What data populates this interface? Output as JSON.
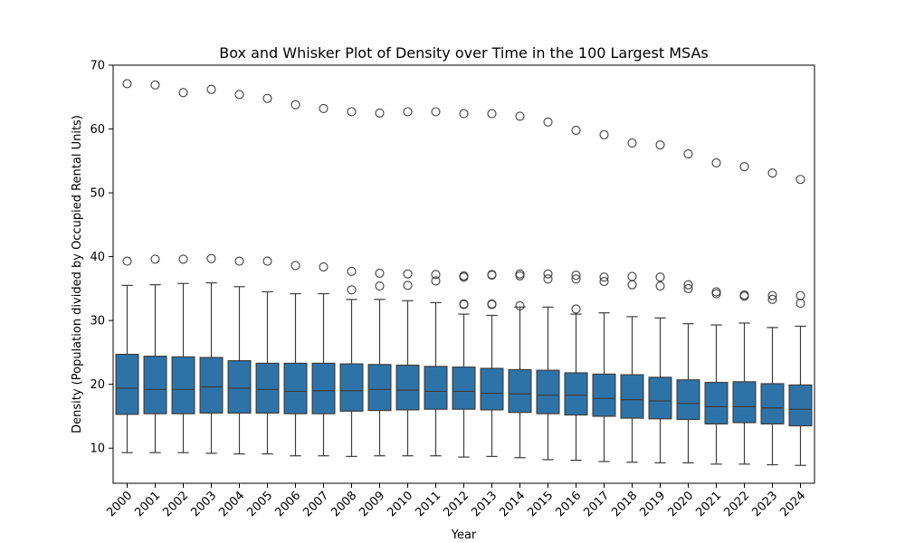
{
  "chart_data": {
    "type": "box",
    "title": "Box and Whisker Plot of Density over Time in the 100 Largest MSAs",
    "xlabel": "Year",
    "ylabel": "Density (Population divided by Occupied Rental Units)",
    "ylim": [
      4.5,
      70
    ],
    "yticks": [
      10,
      20,
      30,
      40,
      50,
      60,
      70
    ],
    "grid": false,
    "box_color": "#2e73a8",
    "line_color": "#3d3d3d",
    "categories": [
      "2000",
      "2001",
      "2002",
      "2003",
      "2004",
      "2005",
      "2006",
      "2007",
      "2008",
      "2009",
      "2010",
      "2011",
      "2012",
      "2013",
      "2014",
      "2015",
      "2016",
      "2017",
      "2018",
      "2019",
      "2020",
      "2021",
      "2022",
      "2023",
      "2024"
    ],
    "boxes": [
      {
        "whislo": 9.3,
        "q1": 15.3,
        "med": 19.4,
        "q3": 24.7,
        "whishi": 35.5,
        "fliers": [
          39.3,
          67.1
        ]
      },
      {
        "whislo": 9.3,
        "q1": 15.4,
        "med": 19.2,
        "q3": 24.4,
        "whishi": 35.6,
        "fliers": [
          39.6,
          66.9
        ]
      },
      {
        "whislo": 9.3,
        "q1": 15.4,
        "med": 19.2,
        "q3": 24.3,
        "whishi": 35.8,
        "fliers": [
          39.6,
          65.7
        ]
      },
      {
        "whislo": 9.2,
        "q1": 15.5,
        "med": 19.6,
        "q3": 24.2,
        "whishi": 35.9,
        "fliers": [
          39.7,
          66.2
        ]
      },
      {
        "whislo": 9.1,
        "q1": 15.5,
        "med": 19.4,
        "q3": 23.7,
        "whishi": 35.3,
        "fliers": [
          39.3,
          65.4
        ]
      },
      {
        "whislo": 9.1,
        "q1": 15.5,
        "med": 19.2,
        "q3": 23.3,
        "whishi": 34.5,
        "fliers": [
          39.3,
          64.8
        ]
      },
      {
        "whislo": 8.8,
        "q1": 15.4,
        "med": 18.9,
        "q3": 23.3,
        "whishi": 34.2,
        "fliers": [
          38.6,
          63.8
        ]
      },
      {
        "whislo": 8.8,
        "q1": 15.4,
        "med": 19.0,
        "q3": 23.3,
        "whishi": 34.2,
        "fliers": [
          38.4,
          63.2
        ]
      },
      {
        "whislo": 8.7,
        "q1": 15.8,
        "med": 19.0,
        "q3": 23.2,
        "whishi": 33.3,
        "fliers": [
          34.8,
          37.7,
          62.7
        ]
      },
      {
        "whislo": 8.8,
        "q1": 15.9,
        "med": 19.2,
        "q3": 23.1,
        "whishi": 33.3,
        "fliers": [
          35.4,
          37.4,
          62.5
        ]
      },
      {
        "whislo": 8.8,
        "q1": 16.0,
        "med": 19.1,
        "q3": 23.0,
        "whishi": 33.1,
        "fliers": [
          35.5,
          37.3,
          62.7
        ]
      },
      {
        "whislo": 8.8,
        "q1": 16.1,
        "med": 18.9,
        "q3": 22.8,
        "whishi": 32.8,
        "fliers": [
          36.2,
          37.2,
          62.7
        ]
      },
      {
        "whislo": 8.6,
        "q1": 16.1,
        "med": 18.9,
        "q3": 22.7,
        "whishi": 31.0,
        "fliers": [
          32.6,
          32.5,
          36.8,
          37.0,
          62.4
        ]
      },
      {
        "whislo": 8.7,
        "q1": 16.0,
        "med": 18.6,
        "q3": 22.5,
        "whishi": 30.8,
        "fliers": [
          32.5,
          32.6,
          37.1,
          37.2,
          62.4
        ]
      },
      {
        "whislo": 8.5,
        "q1": 15.6,
        "med": 18.5,
        "q3": 22.3,
        "whishi": 32.1,
        "fliers": [
          32.3,
          37.0,
          37.3,
          62.0
        ]
      },
      {
        "whislo": 8.2,
        "q1": 15.4,
        "med": 18.3,
        "q3": 22.2,
        "whishi": 32.1,
        "fliers": [
          36.5,
          37.3,
          61.1
        ]
      },
      {
        "whislo": 8.1,
        "q1": 15.2,
        "med": 18.3,
        "q3": 21.8,
        "whishi": 31.0,
        "fliers": [
          31.8,
          36.5,
          37.1,
          59.8
        ]
      },
      {
        "whislo": 7.9,
        "q1": 15.0,
        "med": 17.8,
        "q3": 21.6,
        "whishi": 31.2,
        "fliers": [
          36.1,
          36.8,
          59.1
        ]
      },
      {
        "whislo": 7.8,
        "q1": 14.7,
        "med": 17.6,
        "q3": 21.5,
        "whishi": 30.6,
        "fliers": [
          35.6,
          36.9,
          57.8
        ]
      },
      {
        "whislo": 7.7,
        "q1": 14.6,
        "med": 17.4,
        "q3": 21.1,
        "whishi": 30.4,
        "fliers": [
          35.4,
          36.8,
          57.5
        ]
      },
      {
        "whislo": 7.7,
        "q1": 14.5,
        "med": 17.0,
        "q3": 20.7,
        "whishi": 29.5,
        "fliers": [
          35.0,
          35.6,
          56.1
        ]
      },
      {
        "whislo": 7.5,
        "q1": 13.8,
        "med": 16.5,
        "q3": 20.3,
        "whishi": 29.3,
        "fliers": [
          34.2,
          34.5,
          54.7
        ]
      },
      {
        "whislo": 7.5,
        "q1": 14.0,
        "med": 16.5,
        "q3": 20.4,
        "whishi": 29.6,
        "fliers": [
          33.8,
          34.0,
          54.1
        ]
      },
      {
        "whislo": 7.4,
        "q1": 13.8,
        "med": 16.3,
        "q3": 20.1,
        "whishi": 28.9,
        "fliers": [
          33.3,
          33.9,
          53.1
        ]
      },
      {
        "whislo": 7.3,
        "q1": 13.5,
        "med": 16.1,
        "q3": 19.9,
        "whishi": 29.1,
        "fliers": [
          32.7,
          33.9,
          52.1
        ]
      }
    ]
  }
}
